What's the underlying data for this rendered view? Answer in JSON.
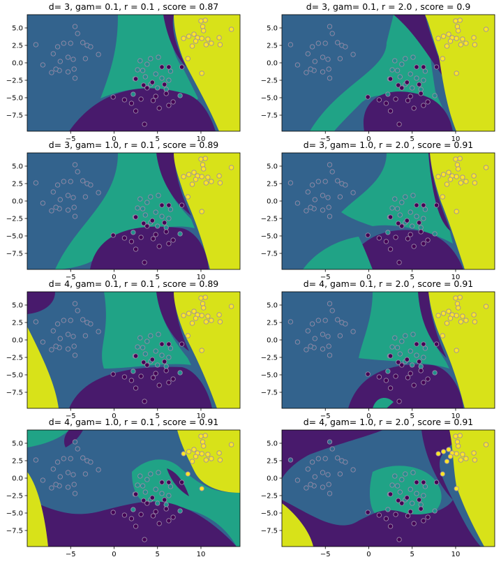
{
  "colors": {
    "class0": "#440154",
    "class1": "#31688e",
    "class2": "#21918c",
    "class3": "#fde725",
    "region0": "#481a6c",
    "region1": "#33638d",
    "region2": "#20a386",
    "region3": "#d8e219",
    "point_edge": "#9a8aa8"
  },
  "chart_data": [
    {
      "type": "scatter",
      "title": "d= 3, gam= 0.1, r = 0.1 , score = 0.87",
      "variant": 0
    },
    {
      "type": "scatter",
      "title": "d= 3, gam= 0.1, r = 2.0 , score = 0.9",
      "variant": 1
    },
    {
      "type": "scatter",
      "title": "d= 3, gam= 1.0, r = 0.1 , score = 0.89",
      "variant": 2
    },
    {
      "type": "scatter",
      "title": "d= 3, gam= 1.0, r = 2.0 , score = 0.91",
      "variant": 3
    },
    {
      "type": "scatter",
      "title": "d= 4, gam= 0.1, r = 0.1 , score = 0.89",
      "variant": 4
    },
    {
      "type": "scatter",
      "title": "d= 4, gam= 0.1, r = 2.0 , score = 0.91",
      "variant": 5
    },
    {
      "type": "scatter",
      "title": "d= 4, gam= 1.0, r = 0.1 , score = 0.91",
      "variant": 6
    },
    {
      "type": "scatter",
      "title": "d= 4, gam= 1.0, r = 2.0 , score = 0.91",
      "variant": 7
    }
  ],
  "axes": {
    "xlim": [
      -10,
      14.5
    ],
    "ylim": [
      -9.8,
      6.9
    ],
    "xticks": [
      -5,
      0,
      5,
      10
    ],
    "yticks": [
      -7.5,
      -5.0,
      -2.5,
      0.0,
      2.5,
      5.0
    ],
    "xtick_labels": [
      "−5",
      "0",
      "5",
      "10"
    ],
    "ytick_labels": [
      "−7.5",
      "−5.0",
      "−2.5",
      "0.0",
      "2.5",
      "5.0"
    ]
  },
  "points": [
    {
      "x": -9,
      "y": 2.6,
      "c": 1
    },
    {
      "x": -7,
      "y": 1.3,
      "c": 1
    },
    {
      "x": -6.5,
      "y": 2.3,
      "c": 1
    },
    {
      "x": -4.5,
      "y": 5.2,
      "c": 1
    },
    {
      "x": -5,
      "y": 2.8,
      "c": 1
    },
    {
      "x": -5.8,
      "y": 2.8,
      "c": 1
    },
    {
      "x": -6.2,
      "y": 0.2,
      "c": 1
    },
    {
      "x": -5.3,
      "y": 0.8,
      "c": 1
    },
    {
      "x": -4.7,
      "y": 0.5,
      "c": 1
    },
    {
      "x": -4.6,
      "y": -0.9,
      "c": 1
    },
    {
      "x": -5.3,
      "y": -1.3,
      "c": 1
    },
    {
      "x": -6.3,
      "y": -1.1,
      "c": 1
    },
    {
      "x": -6.7,
      "y": -0.9,
      "c": 1
    },
    {
      "x": -7.2,
      "y": -1.4,
      "c": 1
    },
    {
      "x": -4.5,
      "y": -2.2,
      "c": 1
    },
    {
      "x": -3.1,
      "y": 2.5,
      "c": 1
    },
    {
      "x": -3.6,
      "y": 2.9,
      "c": 1
    },
    {
      "x": -2.7,
      "y": 2.3,
      "c": 1
    },
    {
      "x": -4.2,
      "y": 4.2,
      "c": 1
    },
    {
      "x": -1.8,
      "y": 1.2,
      "c": 1
    },
    {
      "x": -3.3,
      "y": 0.6,
      "c": 1
    },
    {
      "x": -8.2,
      "y": -0.3,
      "c": 1
    },
    {
      "x": 10,
      "y": 6,
      "c": 3
    },
    {
      "x": 10.5,
      "y": 6.1,
      "c": 3
    },
    {
      "x": 10.2,
      "y": 5.2,
      "c": 3
    },
    {
      "x": 10.3,
      "y": 4.6,
      "c": 3
    },
    {
      "x": 13.5,
      "y": 4.8,
      "c": 3
    },
    {
      "x": 9.2,
      "y": 4.1,
      "c": 3
    },
    {
      "x": 8,
      "y": 3.5,
      "c": 3
    },
    {
      "x": 8.6,
      "y": 3.8,
      "c": 3
    },
    {
      "x": 9.6,
      "y": 3.6,
      "c": 3
    },
    {
      "x": 10.1,
      "y": 3.5,
      "c": 3
    },
    {
      "x": 10.8,
      "y": 3.4,
      "c": 3
    },
    {
      "x": 11.2,
      "y": 2.8,
      "c": 3
    },
    {
      "x": 10.6,
      "y": 2.6,
      "c": 3
    },
    {
      "x": 9.4,
      "y": 3.1,
      "c": 3
    },
    {
      "x": 12.1,
      "y": 3.6,
      "c": 3
    },
    {
      "x": 12.2,
      "y": 2.6,
      "c": 3
    },
    {
      "x": 9,
      "y": 2.4,
      "c": 3
    },
    {
      "x": 8.5,
      "y": 0.6,
      "c": 3
    },
    {
      "x": 10.1,
      "y": -1.5,
      "c": 3
    },
    {
      "x": 3,
      "y": 0.3,
      "c": 2
    },
    {
      "x": 3.8,
      "y": -0.2,
      "c": 2
    },
    {
      "x": 4.2,
      "y": 0.6,
      "c": 2
    },
    {
      "x": 5.1,
      "y": 0.8,
      "c": 2
    },
    {
      "x": 2.7,
      "y": -1,
      "c": 2
    },
    {
      "x": 3.3,
      "y": -1.1,
      "c": 2
    },
    {
      "x": 2.4,
      "y": -2.3,
      "c": 2
    },
    {
      "x": 3.6,
      "y": -2,
      "c": 2
    },
    {
      "x": 5.5,
      "y": -2.2,
      "c": 2
    },
    {
      "x": 6.3,
      "y": -2.5,
      "c": 2
    },
    {
      "x": 4.2,
      "y": -3.1,
      "c": 2
    },
    {
      "x": 5,
      "y": -3.6,
      "c": 2
    },
    {
      "x": 6,
      "y": -3.8,
      "c": 2
    },
    {
      "x": 2.2,
      "y": -4.5,
      "c": 2
    },
    {
      "x": 7.6,
      "y": -4.7,
      "c": 2
    },
    {
      "x": 6.5,
      "y": -1.2,
      "c": 2
    },
    {
      "x": 4.8,
      "y": -1.6,
      "c": 2
    },
    {
      "x": 5.5,
      "y": -0.6,
      "c": 0
    },
    {
      "x": 6.3,
      "y": -0.6,
      "c": 0
    },
    {
      "x": 7.8,
      "y": -0.6,
      "c": 0
    },
    {
      "x": 2.5,
      "y": -2.3,
      "c": 0
    },
    {
      "x": 4.4,
      "y": -2.8,
      "c": 0
    },
    {
      "x": 3.4,
      "y": -3.2,
      "c": 0
    },
    {
      "x": 5.8,
      "y": -3.1,
      "c": 0
    },
    {
      "x": 3.8,
      "y": -3.6,
      "c": 0
    },
    {
      "x": 6,
      "y": -4.4,
      "c": 0
    },
    {
      "x": -0.1,
      "y": -4.9,
      "c": 0
    },
    {
      "x": 1.2,
      "y": -5.3,
      "c": 0
    },
    {
      "x": 2,
      "y": -5.8,
      "c": 0
    },
    {
      "x": 3.1,
      "y": -5.2,
      "c": 0
    },
    {
      "x": 2.5,
      "y": -6.9,
      "c": 0
    },
    {
      "x": 4.5,
      "y": -5.4,
      "c": 0
    },
    {
      "x": 5.2,
      "y": -6.5,
      "c": 0
    },
    {
      "x": 6.3,
      "y": -6.1,
      "c": 0
    },
    {
      "x": 6.8,
      "y": -5.6,
      "c": 0
    },
    {
      "x": 3.5,
      "y": -8.8,
      "c": 0
    },
    {
      "x": 4.8,
      "y": -4.8,
      "c": 0
    }
  ]
}
